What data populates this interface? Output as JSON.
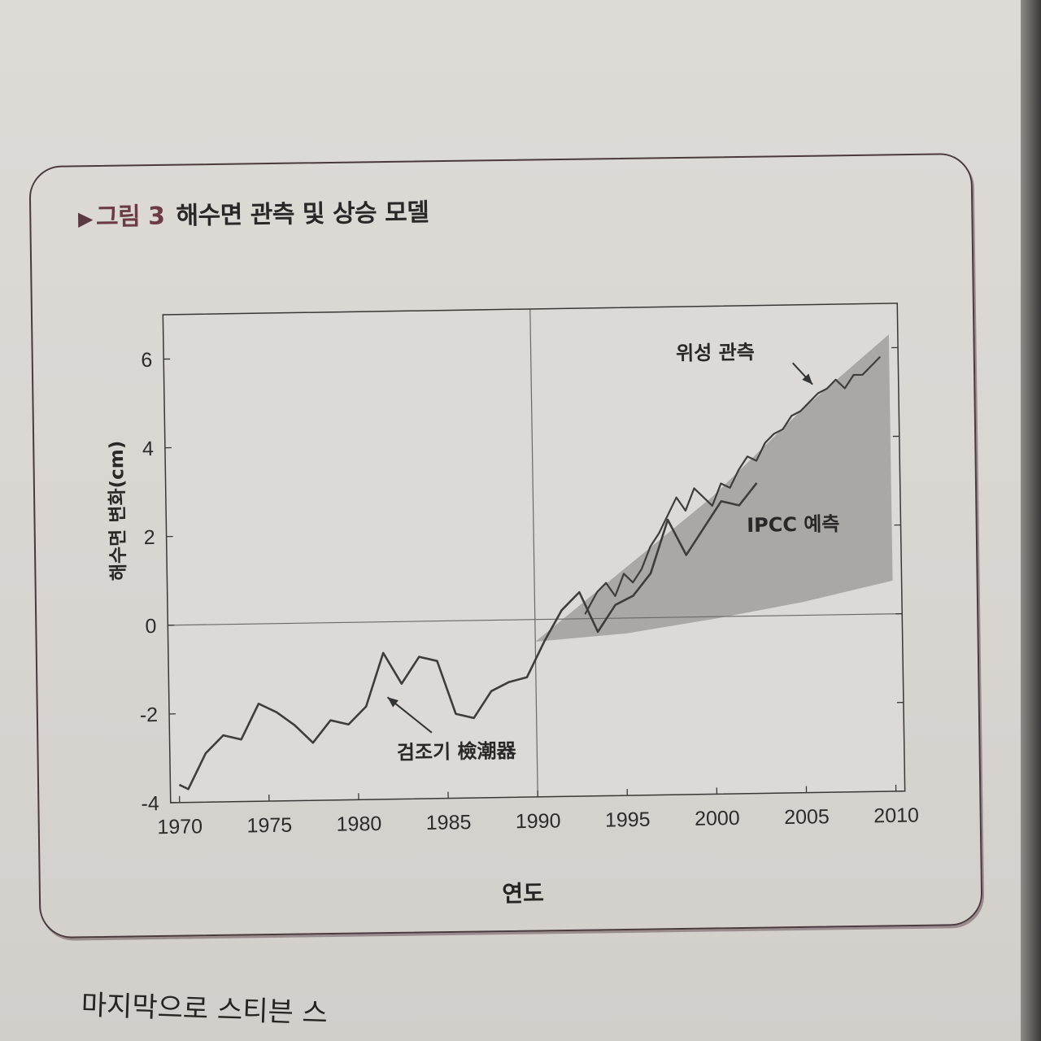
{
  "figure": {
    "label": "그림 3",
    "title": "해수면 관측 및 상승 모델"
  },
  "body_text": "마지막으로 스티븐 스",
  "chart_data": {
    "type": "line",
    "title": "해수면 관측 및 상승 모델",
    "xlabel": "연도",
    "ylabel": "해수면 변화(cm)",
    "xlim": [
      1969.5,
      2010.5
    ],
    "ylim": [
      -4,
      7
    ],
    "x_ticks": [
      1970,
      1975,
      1980,
      1985,
      1990,
      1995,
      2000,
      2005,
      2010
    ],
    "y_ticks": [
      -4,
      -2,
      0,
      2,
      4,
      6
    ],
    "reference_line_x": 1990,
    "grid": false,
    "annotations": [
      {
        "text": "검조기 檢潮器",
        "target": [
          1981.7,
          -1.7
        ],
        "label_at": [
          1985.5,
          -3.1
        ]
      },
      {
        "text": "위성 관측",
        "target": [
          2005.7,
          5.2
        ],
        "label_at": [
          2000.3,
          5.8
        ]
      },
      {
        "text": "IPCC 예측",
        "target": null,
        "label_at": [
          2004.5,
          1.9
        ]
      }
    ],
    "series": [
      {
        "kind": "band",
        "x": [
          1990,
          1995,
          2000,
          2005,
          2010
        ],
        "upper": [
          -0.5,
          1.1,
          2.7,
          4.6,
          6.3
        ],
        "lower": [
          -0.5,
          -0.35,
          -0.05,
          0.3,
          0.75
        ]
      },
      {
        "kind": "line",
        "x": [
          1970,
          1970.5,
          1971.5,
          1972.5,
          1973.5,
          1974.5,
          1975.5,
          1976.5,
          1977.5,
          1978.5,
          1979.5,
          1980.5,
          1981.5,
          1982.5,
          1983.5,
          1984.5,
          1985.5,
          1986.5,
          1987.5,
          1988.5,
          1989.5,
          1990.5,
          1991.5,
          1992.5,
          1993.5,
          1994.5,
          1995.5,
          1996.5,
          1997.5,
          1998.5,
          1999.5,
          2000.5,
          2001.5,
          2002.5
        ],
        "y": [
          -3.6,
          -3.7,
          -2.9,
          -2.5,
          -2.6,
          -1.8,
          -2.0,
          -2.3,
          -2.7,
          -2.2,
          -2.3,
          -1.9,
          -0.7,
          -1.4,
          -0.8,
          -0.9,
          -2.1,
          -2.2,
          -1.6,
          -1.4,
          -1.3,
          -0.5,
          0.2,
          0.6,
          -0.3,
          0.3,
          0.5,
          1.0,
          2.2,
          1.4,
          2.0,
          2.6,
          2.5,
          3.0
        ]
      },
      {
        "kind": "line",
        "x": [
          1992.8,
          1993.5,
          1994.0,
          1994.5,
          1995.0,
          1995.5,
          1996.0,
          1996.5,
          1997.0,
          1997.5,
          1998.0,
          1998.5,
          1999.0,
          1999.5,
          2000.0,
          2000.5,
          2001.0,
          2001.5,
          2002.0,
          2002.5,
          2003.0,
          2003.5,
          2004.0,
          2004.5,
          2005.0,
          2005.5,
          2006.0,
          2006.5,
          2007.0,
          2007.5,
          2008.0,
          2008.5,
          2009.0,
          2009.5
        ],
        "y": [
          0.1,
          0.6,
          0.8,
          0.5,
          1.0,
          0.8,
          1.1,
          1.6,
          1.9,
          2.3,
          2.7,
          2.4,
          2.9,
          2.7,
          2.5,
          3.0,
          2.9,
          3.3,
          3.6,
          3.5,
          3.9,
          4.1,
          4.2,
          4.5,
          4.6,
          4.8,
          5.0,
          5.1,
          5.3,
          5.1,
          5.4,
          5.4,
          5.6,
          5.8
        ]
      }
    ]
  }
}
